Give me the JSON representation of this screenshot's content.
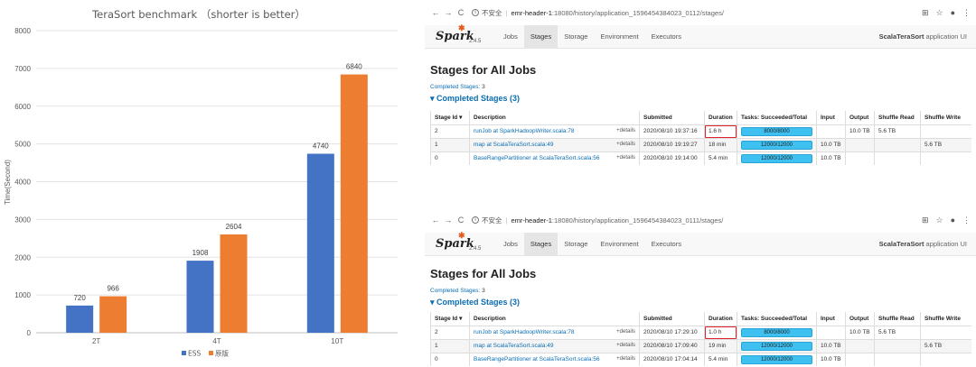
{
  "chart_data": {
    "type": "bar",
    "title": "TeraSort benchmark （shorter is better）",
    "ylabel": "Time(Second)",
    "xlabel": "",
    "ylim": [
      0,
      8000
    ],
    "yticks": [
      0,
      1000,
      2000,
      3000,
      4000,
      5000,
      6000,
      7000,
      8000
    ],
    "categories": [
      "2T",
      "4T",
      "10T"
    ],
    "grid": true,
    "legend_position": "bottom",
    "series": [
      {
        "name": "ESS",
        "values": [
          720,
          1908,
          4740
        ],
        "color": "#4472c4"
      },
      {
        "name": "原版",
        "values": [
          966,
          2604,
          6840
        ],
        "color": "#ed7d31"
      }
    ]
  },
  "browsers": [
    {
      "address": {
        "insecure_label": "不安全",
        "host": "emr-header-1",
        "path": ":18080/history/application_1596454384023_0112/stages/"
      },
      "app_name_bold": "ScalaTeraSort",
      "app_name_rest": " application UI",
      "page_title": "Stages for All Jobs",
      "completed_label": "Completed Stages:",
      "completed_count": "3",
      "section_title": "Completed Stages (3)",
      "rows": [
        {
          "id": "2",
          "desc": "runJob at SparkHadoopWriter.scala:78",
          "details": "+details",
          "submitted": "2020/08/10 19:37:16",
          "duration": "1.6 h",
          "tasks": "8000/8000",
          "input": "",
          "output": "10.0 TB",
          "shuffle_read": "5.6 TB",
          "shuffle_write": ""
        },
        {
          "id": "1",
          "desc": "map at ScalaTeraSort.scala:49",
          "details": "+details",
          "submitted": "2020/08/10 19:19:27",
          "duration": "18 min",
          "tasks": "12000/12000",
          "input": "10.0 TB",
          "output": "",
          "shuffle_read": "",
          "shuffle_write": "5.6 TB"
        },
        {
          "id": "0",
          "desc": "BaseRangePartitioner at ScalaTeraSort.scala:56",
          "details": "+details",
          "submitted": "2020/08/10 19:14:00",
          "duration": "5.4 min",
          "tasks": "12000/12000",
          "input": "10.0 TB",
          "output": "",
          "shuffle_read": "",
          "shuffle_write": ""
        }
      ]
    },
    {
      "address": {
        "insecure_label": "不安全",
        "host": "emr-header-1",
        "path": ":18080/history/application_1596454384023_0111/stages/"
      },
      "app_name_bold": "ScalaTeraSort",
      "app_name_rest": " application UI",
      "page_title": "Stages for All Jobs",
      "completed_label": "Completed Stages:",
      "completed_count": "3",
      "section_title": "Completed Stages (3)",
      "rows": [
        {
          "id": "2",
          "desc": "runJob at SparkHadoopWriter.scala:78",
          "details": "+details",
          "submitted": "2020/08/10 17:29:10",
          "duration": "1.0 h",
          "tasks": "8000/8000",
          "input": "",
          "output": "10.0 TB",
          "shuffle_read": "5.6 TB",
          "shuffle_write": ""
        },
        {
          "id": "1",
          "desc": "map at ScalaTeraSort.scala:49",
          "details": "+details",
          "submitted": "2020/08/10 17:09:40",
          "duration": "19 min",
          "tasks": "12000/12000",
          "input": "10.0 TB",
          "output": "",
          "shuffle_read": "",
          "shuffle_write": "5.6 TB"
        },
        {
          "id": "0",
          "desc": "BaseRangePartitioner at ScalaTeraSort.scala:56",
          "details": "+details",
          "submitted": "2020/08/10 17:04:14",
          "duration": "5.4 min",
          "tasks": "12000/12000",
          "input": "10.0 TB",
          "output": "",
          "shuffle_read": "",
          "shuffle_write": ""
        }
      ]
    }
  ],
  "spark": {
    "logo_text": "Spark",
    "version": "2.4.5",
    "tabs": [
      "Jobs",
      "Stages",
      "Storage",
      "Environment",
      "Executors"
    ],
    "active_tab": "Stages"
  },
  "table_headers": {
    "stage_id": "Stage Id ▾",
    "description": "Description",
    "submitted": "Submitted",
    "duration": "Duration",
    "tasks": "Tasks: Succeeded/Total",
    "input": "Input",
    "output": "Output",
    "shuffle_read": "Shuffle Read",
    "shuffle_write": "Shuffle Write"
  },
  "icons": {
    "back": "←",
    "forward": "→",
    "reload": "C",
    "translate": "⊞",
    "bookmark": "☆",
    "profile": "●",
    "menu": "⋮"
  }
}
